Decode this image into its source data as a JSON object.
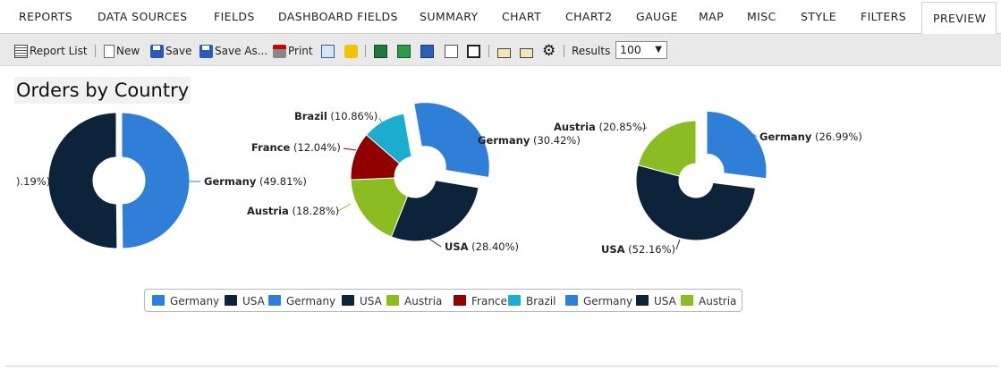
{
  "tabs": [
    {
      "label": "REPORTS"
    },
    {
      "label": "DATA SOURCES"
    },
    {
      "label": "FIELDS"
    },
    {
      "label": "DASHBOARD FIELDS"
    },
    {
      "label": "SUMMARY"
    },
    {
      "label": "CHART"
    },
    {
      "label": "CHART2"
    },
    {
      "label": "GAUGE"
    },
    {
      "label": "MAP"
    },
    {
      "label": "MISC"
    },
    {
      "label": "STYLE"
    },
    {
      "label": "FILTERS"
    },
    {
      "label": "PREVIEW"
    }
  ],
  "toolbar": {
    "report_list": "Report List",
    "new": "New",
    "save": "Save",
    "save_as": "Save As...",
    "print": "Print",
    "results_label": "Results",
    "results_value": "100",
    "icons": [
      "list-icon",
      "new-doc-icon",
      "save-icon",
      "save-as-icon",
      "print-icon",
      "html-export-icon",
      "sql-icon",
      "excel-export-icon",
      "excel-icon",
      "word-icon",
      "document-icon",
      "csv-icon",
      "email-icon",
      "email-icon",
      "gear-icon"
    ]
  },
  "page": {
    "title": "Orders by Country"
  },
  "colors": {
    "Germany": "#2f7ed8",
    "USA": "#0d233a",
    "Austria": "#8bbc21",
    "France": "#910000",
    "Brazil": "#1aadce"
  },
  "chart_data": [
    {
      "type": "pie",
      "series": [
        {
          "name": "Germany",
          "value": 49.81,
          "label": "Germany",
          "pct": "(49.81%)"
        },
        {
          "name": "USA",
          "value": 50.19,
          "label": "",
          "pct": ").19%)"
        }
      ]
    },
    {
      "type": "pie",
      "series": [
        {
          "name": "Germany",
          "value": 30.42,
          "label": "Germany",
          "pct": "(30.42%)"
        },
        {
          "name": "USA",
          "value": 28.4,
          "label": "USA",
          "pct": "(28.40%)"
        },
        {
          "name": "Austria",
          "value": 18.28,
          "label": "Austria",
          "pct": "(18.28%)"
        },
        {
          "name": "France",
          "value": 12.04,
          "label": "France",
          "pct": "(12.04%)"
        },
        {
          "name": "Brazil",
          "value": 10.86,
          "label": "Brazil",
          "pct": "(10.86%)"
        }
      ]
    },
    {
      "type": "pie",
      "series": [
        {
          "name": "Germany",
          "value": 26.99,
          "label": "Germany",
          "pct": "(26.99%)"
        },
        {
          "name": "USA",
          "value": 52.16,
          "label": "USA",
          "pct": "(52.16%)"
        },
        {
          "name": "Austria",
          "value": 20.85,
          "label": "Austria",
          "pct": "(20.85%)"
        }
      ]
    }
  ],
  "legend": [
    {
      "label": "Germany"
    },
    {
      "label": "USA"
    },
    {
      "label": "Germany"
    },
    {
      "label": "USA"
    },
    {
      "label": "Austria"
    },
    {
      "label": "France"
    },
    {
      "label": "Brazil"
    },
    {
      "label": "Germany"
    },
    {
      "label": "USA"
    },
    {
      "label": "Austria"
    }
  ]
}
